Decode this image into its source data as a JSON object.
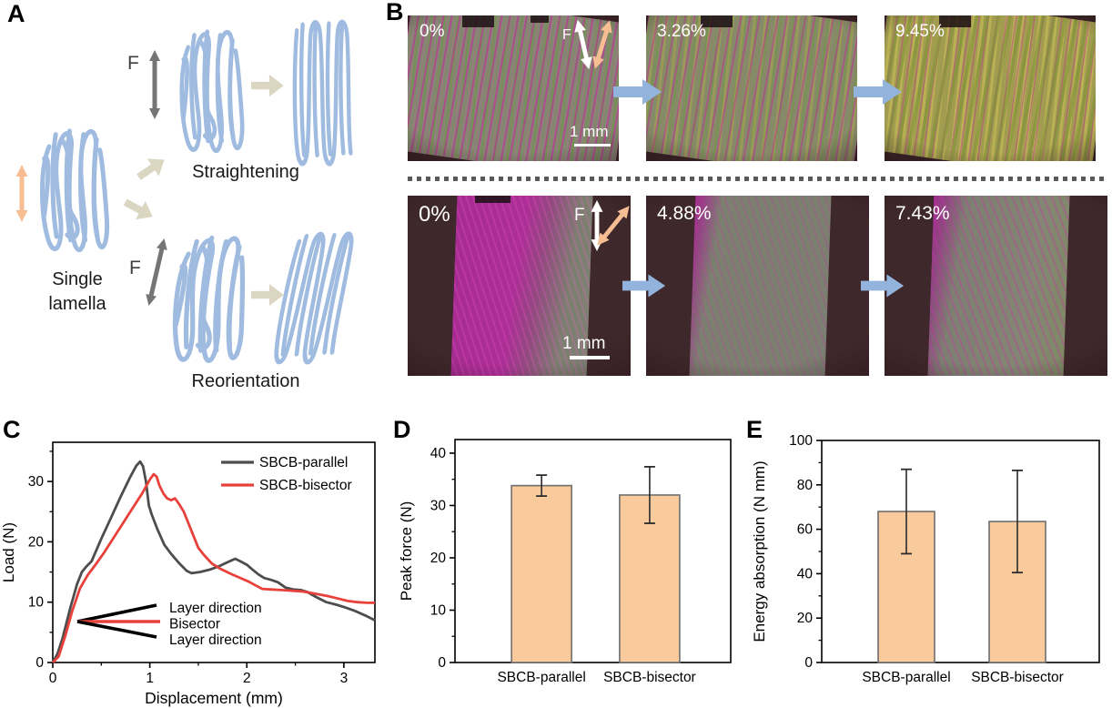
{
  "labels": {
    "a": "A",
    "b": "B",
    "c": "C",
    "d": "D",
    "e": "E"
  },
  "panel_a": {
    "f_top": "F",
    "f_bottom": "F",
    "single_lamella_line1": "Single",
    "single_lamella_line2": "lamella",
    "straightening": "Straightening",
    "reorientation": "Reorientation",
    "colors": {
      "lamella": "#9FBBDF",
      "beige_arrow": "#DBD6C1",
      "gray_arrow": "#757575",
      "orange_arrow": "#F6BE92"
    }
  },
  "panel_b": {
    "separator_color": "#595959",
    "arrow_color": "#92B4DC",
    "rows": [
      {
        "images": [
          {
            "strain": "0%",
            "f_label": "F",
            "scale_bar": "1 mm"
          },
          {
            "strain": "3.26%"
          },
          {
            "strain": "9.45%"
          }
        ]
      },
      {
        "images": [
          {
            "strain": "0%",
            "f_label": "F",
            "scale_bar": "1 mm"
          },
          {
            "strain": "4.88%"
          },
          {
            "strain": "7.43%"
          }
        ]
      }
    ]
  },
  "chart_data": [
    {
      "id": "load_displacement",
      "type": "line",
      "xlabel": "Displacement (mm)",
      "ylabel": "Load (N)",
      "xlim": [
        0,
        3.32
      ],
      "ylim": [
        0,
        36.5
      ],
      "xticks": [
        0,
        1,
        2,
        3
      ],
      "yticks": [
        0,
        10,
        20,
        30
      ],
      "grid": false,
      "legend_position": "top-right",
      "series": [
        {
          "name": "SBCB-parallel",
          "color": "#4D4D4D",
          "points": [
            [
              0,
              0
            ],
            [
              0.05,
              1.5
            ],
            [
              0.1,
              4
            ],
            [
              0.18,
              9
            ],
            [
              0.25,
              13
            ],
            [
              0.3,
              15
            ],
            [
              0.34,
              15.8
            ],
            [
              0.4,
              16.8
            ],
            [
              0.5,
              20.5
            ],
            [
              0.6,
              24
            ],
            [
              0.7,
              27.5
            ],
            [
              0.8,
              30.8
            ],
            [
              0.86,
              32.6
            ],
            [
              0.9,
              33.3
            ],
            [
              0.93,
              32.5
            ],
            [
              0.96,
              30
            ],
            [
              0.99,
              26
            ],
            [
              1.02,
              24.5
            ],
            [
              1.08,
              22
            ],
            [
              1.15,
              19.5
            ],
            [
              1.22,
              18
            ],
            [
              1.3,
              16.5
            ],
            [
              1.38,
              15.2
            ],
            [
              1.43,
              14.8
            ],
            [
              1.52,
              15
            ],
            [
              1.62,
              15.4
            ],
            [
              1.72,
              16
            ],
            [
              1.8,
              16.6
            ],
            [
              1.88,
              17.2
            ],
            [
              1.93,
              16.8
            ],
            [
              2.0,
              16.2
            ],
            [
              2.05,
              15.5
            ],
            [
              2.12,
              14.6
            ],
            [
              2.18,
              14
            ],
            [
              2.25,
              13.7
            ],
            [
              2.32,
              13.3
            ],
            [
              2.4,
              12.4
            ],
            [
              2.48,
              12.1
            ],
            [
              2.56,
              12
            ],
            [
              2.62,
              11.7
            ],
            [
              2.72,
              10.8
            ],
            [
              2.82,
              10
            ],
            [
              2.92,
              9.6
            ],
            [
              3.02,
              9.1
            ],
            [
              3.12,
              8.5
            ],
            [
              3.22,
              7.8
            ],
            [
              3.32,
              7
            ]
          ]
        },
        {
          "name": "SBCB-bisector",
          "color": "#E8413C",
          "points": [
            [
              0,
              0
            ],
            [
              0.06,
              1
            ],
            [
              0.13,
              4.5
            ],
            [
              0.2,
              8.5
            ],
            [
              0.28,
              12.3
            ],
            [
              0.36,
              14.5
            ],
            [
              0.44,
              16.2
            ],
            [
              0.52,
              18
            ],
            [
              0.62,
              20.5
            ],
            [
              0.72,
              23
            ],
            [
              0.82,
              25.5
            ],
            [
              0.92,
              28
            ],
            [
              1.0,
              30.3
            ],
            [
              1.04,
              31.2
            ],
            [
              1.07,
              30.8
            ],
            [
              1.1,
              29.3
            ],
            [
              1.14,
              28
            ],
            [
              1.18,
              27.2
            ],
            [
              1.22,
              26.9
            ],
            [
              1.26,
              27.2
            ],
            [
              1.3,
              26.3
            ],
            [
              1.35,
              25
            ],
            [
              1.4,
              23
            ],
            [
              1.45,
              21
            ],
            [
              1.5,
              19
            ],
            [
              1.56,
              17.8
            ],
            [
              1.64,
              16.4
            ],
            [
              1.72,
              15.6
            ],
            [
              1.82,
              14.8
            ],
            [
              1.92,
              14.1
            ],
            [
              2.02,
              13.4
            ],
            [
              2.1,
              12.7
            ],
            [
              2.16,
              12.2
            ],
            [
              2.26,
              12.1
            ],
            [
              2.36,
              12
            ],
            [
              2.46,
              11.9
            ],
            [
              2.56,
              11.8
            ],
            [
              2.64,
              11.6
            ],
            [
              2.74,
              11.3
            ],
            [
              2.84,
              11
            ],
            [
              2.94,
              10.6
            ],
            [
              3.04,
              10.2
            ],
            [
              3.14,
              10
            ],
            [
              3.24,
              9.9
            ],
            [
              3.32,
              9.9
            ]
          ]
        }
      ],
      "annotation": {
        "bisector_color": "#E8413C",
        "labels": [
          {
            "text": "Layer direction",
            "color": "#000000"
          },
          {
            "text": "Bisector",
            "color": "#E8413C"
          },
          {
            "text": "Layer direction",
            "color": "#000000"
          }
        ]
      }
    },
    {
      "id": "peak_force",
      "type": "bar",
      "ylabel": "Peak force (N)",
      "ylim": [
        0,
        42.6
      ],
      "yticks": [
        0,
        10,
        20,
        30,
        40
      ],
      "categories": [
        "SBCB-parallel",
        "SBCB-bisector"
      ],
      "values": [
        33.8,
        32.0
      ],
      "errors": [
        2.0,
        5.4
      ],
      "bar_fill": "#F9CB9C",
      "bar_stroke": "#6E6E6E"
    },
    {
      "id": "energy_absorption",
      "type": "bar",
      "ylabel": "Energy absorption (N mm)",
      "ylim": [
        0,
        100
      ],
      "yticks": [
        0,
        20,
        40,
        60,
        80,
        100
      ],
      "categories": [
        "SBCB-parallel",
        "SBCB-bisector"
      ],
      "values": [
        68,
        63.5
      ],
      "errors": [
        19,
        23
      ],
      "bar_fill": "#F9CB9C",
      "bar_stroke": "#6E6E6E"
    }
  ]
}
